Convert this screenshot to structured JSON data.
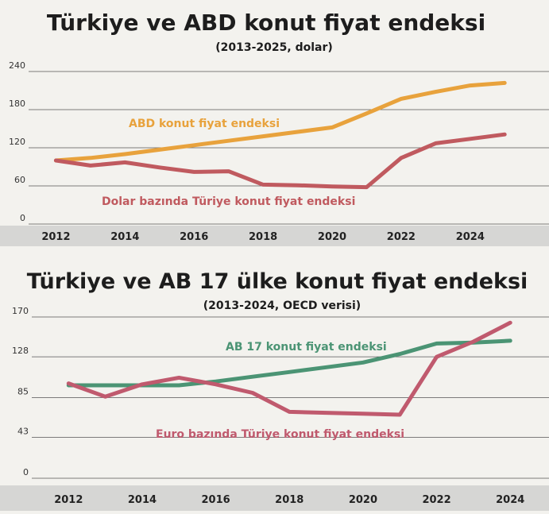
{
  "chart_data": [
    {
      "type": "line",
      "title": "Türkiye ve ABD konut fiyat endeksi",
      "subtitle": "(2013-2025, dolar)",
      "yticks": [
        "0",
        "60",
        "120",
        "180",
        "240"
      ],
      "xticks": [
        "2012",
        "2014",
        "2016",
        "2018",
        "2020",
        "2022",
        "2024"
      ],
      "ylim": [
        0,
        240
      ],
      "xlim": [
        2011.3,
        2025.8
      ],
      "grid": true,
      "series": [
        {
          "name": "ABD konut fiyat endeksi",
          "color": "#e8a23c",
          "x": [
            2012,
            2013,
            2014,
            2015,
            2016,
            2017,
            2018,
            2019,
            2020,
            2021,
            2022,
            2023,
            2024,
            2025
          ],
          "values": [
            100,
            104,
            110,
            117,
            124,
            131,
            138,
            145,
            152,
            174,
            197,
            208,
            218,
            222
          ]
        },
        {
          "name": "Dolar bazında Türiye konut fiyat endeksi",
          "color": "#c05a5f",
          "x": [
            2012,
            2013,
            2014,
            2015,
            2016,
            2017,
            2018,
            2019,
            2020,
            2021,
            2022,
            2023,
            2024,
            2025
          ],
          "values": [
            100,
            92,
            97,
            89,
            82,
            83,
            62,
            61,
            59,
            58,
            104,
            127,
            134,
            141
          ]
        }
      ]
    },
    {
      "type": "line",
      "title": "Türkiye ve AB 17 ülke konut fiyat endeksi",
      "subtitle": "(2013-2024, OECD verisi)",
      "yticks": [
        "0",
        "43",
        "85",
        "128",
        "170"
      ],
      "xticks": [
        "2012",
        "2014",
        "2016",
        "2018",
        "2020",
        "2022",
        "2024"
      ],
      "ylim": [
        0,
        170
      ],
      "xlim": [
        2011.0,
        2024.6
      ],
      "grid": true,
      "series": [
        {
          "name": "AB 17 konut fiyat endeksi",
          "color": "#4b9474",
          "x": [
            2012,
            2013,
            2014,
            2015,
            2016,
            2017,
            2018,
            2019,
            2020,
            2021,
            2022,
            2023,
            2024
          ],
          "values": [
            98,
            98,
            98,
            98,
            102,
            107,
            112,
            117,
            122,
            131,
            142,
            143,
            145
          ]
        },
        {
          "name": "Euro bazında Türiye konut fiyat endeksi",
          "color": "#c05a6e",
          "x": [
            2012,
            2013,
            2014,
            2015,
            2016,
            2017,
            2018,
            2019,
            2020,
            2021,
            2022,
            2023,
            2024
          ],
          "values": [
            100,
            86,
            99,
            106,
            99,
            90,
            70,
            69,
            68,
            67,
            128,
            144,
            164
          ]
        }
      ]
    }
  ]
}
